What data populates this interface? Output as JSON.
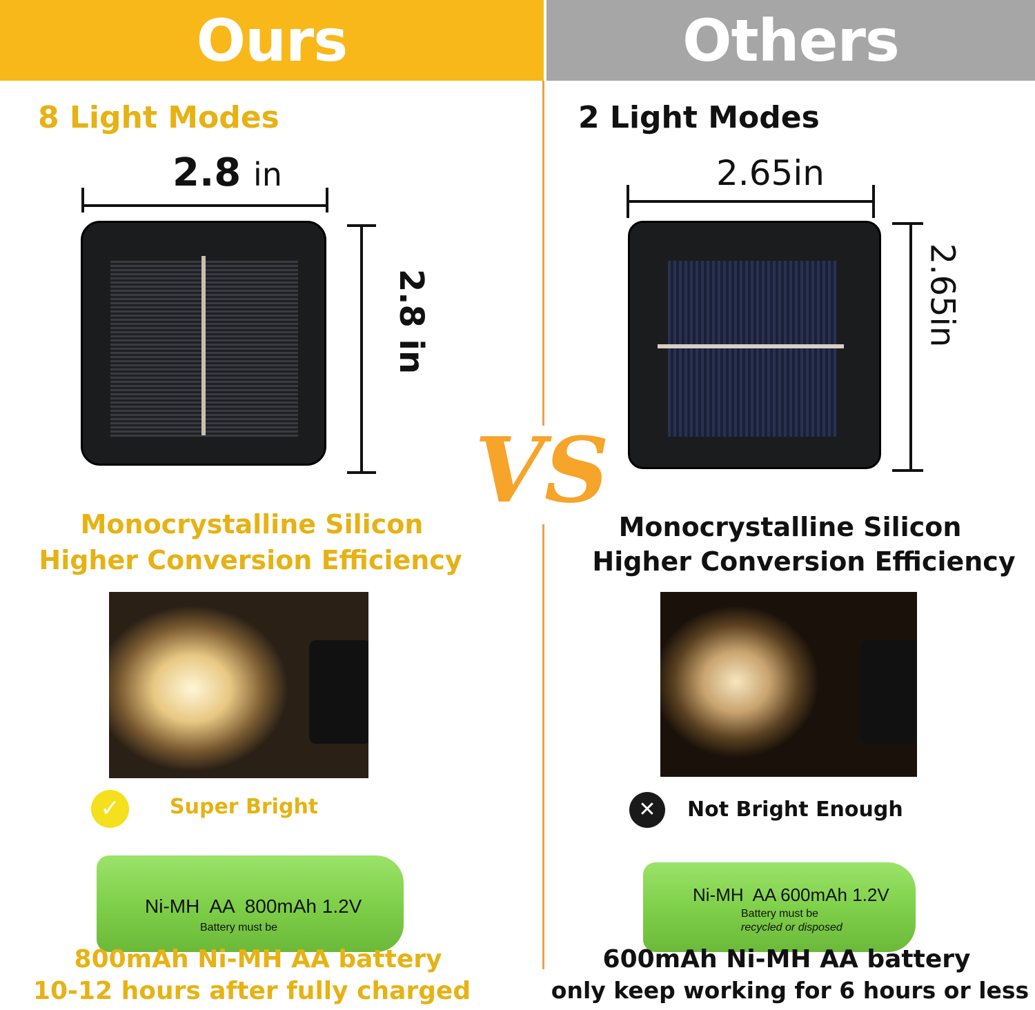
{
  "header": {
    "ours": "Ours",
    "others": "Others"
  },
  "colors": {
    "ours_accent": "#f9b81a",
    "others_header": "#a6a6a6",
    "divider": "#e4a54a",
    "vs": "#f6a42a"
  },
  "vs": "VS",
  "ours": {
    "modes": "8 Light Modes",
    "width": "2.8",
    "width_unit": "in",
    "height": "2.8 in",
    "silicon_line1": "Monocrystalline Silicon",
    "silicon_line2": "Higher Conversion Efficiency",
    "brightness": "Super Bright",
    "brightness_icon": "check-circle-icon",
    "battery_label": "Ni-MH  AA  800mAh 1.2V",
    "battery_small": "Battery must be",
    "battery_line1": "800mAh Ni-MH AA battery",
    "battery_line2": "10-12 hours after fully charged"
  },
  "others": {
    "modes": "2 Light Modes",
    "width": "2.65in",
    "height": "2.65in",
    "silicon_line1": "Monocrystalline Silicon",
    "silicon_line2": "Higher Conversion Efficiency",
    "brightness": "Not Bright Enough",
    "brightness_icon": "x-circle-icon",
    "battery_label": "Ni-MH  AA 600mAh 1.2V",
    "battery_small": "Battery must be",
    "battery_small2": "recycled or disposed",
    "battery_line1": "600mAh Ni-MH AA battery",
    "battery_line2": "only keep working for 6 hours or less"
  }
}
